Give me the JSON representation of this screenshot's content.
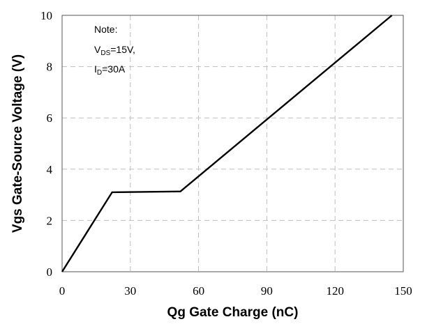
{
  "chart_data": {
    "type": "line",
    "xlabel": "Qg Gate Charge (nC)",
    "ylabel": "Vgs Gate-Source Voltage (V)",
    "xlim": [
      0,
      150
    ],
    "ylim": [
      0,
      10
    ],
    "x_ticks": [
      0,
      30,
      60,
      90,
      120,
      150
    ],
    "y_ticks": [
      0,
      2,
      4,
      6,
      8,
      10
    ],
    "grid": true,
    "series": [
      {
        "x": [
          0,
          22,
          52,
          145
        ],
        "y": [
          0,
          3.1,
          3.13,
          10
        ],
        "color": "#000000"
      }
    ],
    "annotation": {
      "title": "Note:",
      "lines": [
        {
          "main": "V",
          "sub": "DS",
          "rest": "=15V,"
        },
        {
          "main": "I",
          "sub": "D",
          "rest": "=30A"
        }
      ]
    }
  }
}
